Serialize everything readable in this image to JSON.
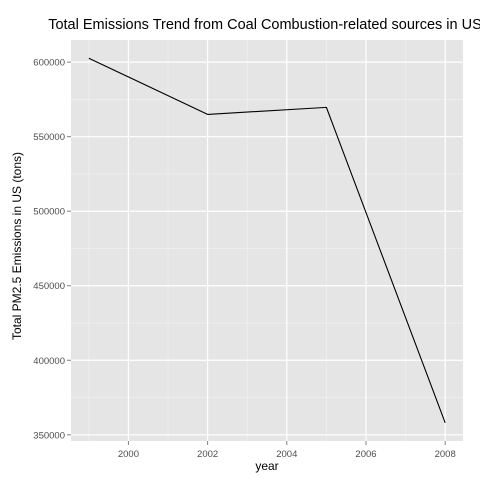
{
  "chart_data": {
    "type": "line",
    "title": "Total Emissions Trend from Coal Combustion-related sources in US",
    "xlabel": "year",
    "ylabel": "Total PM2.5 Emissions in US (tons)",
    "x": [
      1999,
      2002,
      2005,
      2008
    ],
    "series": [
      {
        "values": [
          602624,
          564940,
          569654,
          358084
        ]
      }
    ],
    "xlim": [
      1998.55,
      2008.45
    ],
    "ylim": [
      345856,
      614852
    ],
    "xticks": [
      2000,
      2002,
      2004,
      2006,
      2008
    ],
    "xtick_labels": [
      "2000",
      "2002",
      "2004",
      "2006",
      "2008"
    ],
    "yticks": [
      350000,
      400000,
      450000,
      500000,
      550000,
      600000
    ],
    "ytick_labels": [
      "350000",
      "400000",
      "450000",
      "500000",
      "550000",
      "600000"
    ],
    "grid": true,
    "legend": "none",
    "colors": {
      "panel": "#e5e5e5",
      "grid_major": "#ffffff",
      "grid_minor": "#f2f2f2",
      "line": "#000000",
      "tick_label": "#4d4d4d",
      "tick_mark": "#7f7f7f"
    }
  }
}
